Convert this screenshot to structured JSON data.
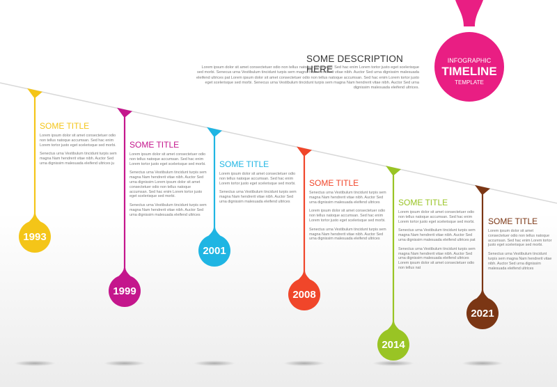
{
  "badge": {
    "line1": "INFOGRAPHIC",
    "line2": "TIMELINE",
    "line3": "TEMPLATE",
    "color": "#e91e83"
  },
  "header": {
    "title": "SOME DESCRIPTION HERE",
    "body": "Lorem ipsum dolor sit amet consectetuer odio non tellus natoque accumsan. Sed hac enim Lorem tortor justo eget scelerisque sed morbi. Senecus urna Vestibulum tincidunt turpis sem magna Nam hendrerit vitae nibh. Auctor Sed urna dignissim malesuada eleifend ultrices pat Lorem ipsum dolor sit amet consectetuer odio non tellus natoque accumsan. Sed hac enim Lorem tortor justo eget scelerisque sed morbi. Senecus urna Vestibulum tincidunt turpis sem magna Nam hendrerit vitae nibh. Auctor Sed urna dignissim malesuada eleifend ultrices."
  },
  "entries": [
    {
      "year": "1993",
      "title": "SOME TITLE",
      "color": "#f4c518",
      "para1": "Lorem ipsum dolor sit amet consectetuer odio non tellus natoque accumsan. Sed hac enim Lorem tortor justo eget scelerisque sed morbi.",
      "para2": "Senectus urna Vestibulum tincidunt turpis sem magna Nam hendrerit vitae nibh. Auctor Sed urna dignissim malesuada eleifend ultrices ju"
    },
    {
      "year": "1999",
      "title": "SOME TITLE",
      "color": "#c4168c",
      "para1": "Lorem ipsum dolor sit amet consectetuer odio non tellus natoque accumsan. Sed hac enim Lorem tortor justo eget scelerisque sed morbi.",
      "para2": "Senectus urna Vestibulum tincidunt turpis sem magna Nam hendrerit vitae nibh. Auctor Sed urna dignissim Lorem ipsum dolor sit amet consectetuer odio non tellus natoque accumsan. Sed hac enim Lorem tortor justo eget scelerisque sed morbi.",
      "para3": "Senectus urna Vestibulum tincidunt turpis sem magna Nam hendrerit vitae nibh. Auctor Sed urna dignissim malesuada eleifend ultrices"
    },
    {
      "year": "2001",
      "title": "SOME TITLE",
      "color": "#1fb5e3",
      "para1": "Lorem ipsum dolor sit amet consectetuer odio non tellus natoque accumsan. Sed hac enim Lorem tortor justo eget scelerisque sed morbi.",
      "para2": "Senectus urna Vestibulum tincidunt turpis sem magna Nam hendrerit vitae nibh. Auctor Sed urna dignissim malesuada eleifend ultrices"
    },
    {
      "year": "2008",
      "title": "SOME TITLE",
      "color": "#f0462a",
      "para1": "Senectus urna Vestibulum tincidunt turpis sem magna Nam hendrerit vitae nibh. Auctor Sed urna dignissim malesuada eleifend ultrices",
      "para2": "Lorem ipsum dolor sit amet consectetuer odio non tellus natoque accumsan. Sed hac enim Lorem tortor justo eget scelerisque sed morbi.",
      "para3": "Senectus urna Vestibulum tincidunt turpis sem magna Nam hendrerit vitae nibh. Auctor Sed urna dignissim malesuada eleifend ultrices"
    },
    {
      "year": "2014",
      "title": "SOME TITLE",
      "color": "#99c424",
      "para1": "Lorem ipsum dolor sit amet consectetuer odio non tellus natoque accumsan. Sed hac enim Lorem tortor justo eget scelerisque sed morbi.",
      "para2": "Senectus urna Vestibulum tincidunt turpis sem magna Nam hendrerit vitae nibh. Auctor Sed urna dignissim malesuada eleifend ultrices pat",
      "para3": "Senectus urna Vestibulum tincidunt turpis sem magna Nam hendrerit vitae nibh. Auctor Sed urna dignissim malesuada eleifend ultrices Lorem ipsum dolor sit amet consectetuer odio non tellus nat"
    },
    {
      "year": "2021",
      "title": "SOME TITLE",
      "color": "#7b3614",
      "para1": "Lorem ipsum dolor sit amet consectetuer odio non tellus natoque accumsan. Sed hac enim Lorem tortor justo eget scelerisque sed morbi.",
      "para2": "Senectus urna Vestibulum tincidunt turpis sem magna Nam hendrerit vitae nibh. Auctor Sed urna dignissim malesuada eleifend ultrices"
    }
  ]
}
